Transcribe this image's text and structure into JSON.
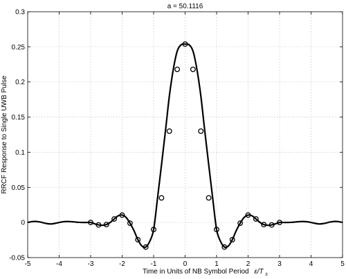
{
  "chart_data": {
    "type": "line",
    "title": "a = 50.1116",
    "xlabel": "Time in Units of NB Symbol Period",
    "xlabel_math": {
      "base": "ε/T",
      "sub": "s"
    },
    "ylabel": "RRCF Response to Single UWB Pulse",
    "xlim": [
      -5,
      5
    ],
    "ylim": [
      -0.05,
      0.3
    ],
    "xticks": [
      -5,
      -4,
      -3,
      -2,
      -1,
      0,
      1,
      2,
      3,
      4,
      5
    ],
    "yticks": [
      -0.05,
      0,
      0.05,
      0.1,
      0.15,
      0.2,
      0.25,
      0.3
    ],
    "xtick_labels": [
      "-5",
      "-4",
      "-3",
      "-2",
      "-1",
      "0",
      "1",
      "2",
      "3",
      "4",
      "5"
    ],
    "ytick_labels": [
      "-0.05",
      "0",
      "0.05",
      "0.1",
      "0.15",
      "0.2",
      "0.25",
      "0.3"
    ],
    "grid": true,
    "series": [
      {
        "style": "solid-curve",
        "x": [
          -5.0,
          -4.875,
          -4.75,
          -4.625,
          -4.5,
          -4.375,
          -4.25,
          -4.125,
          -4.0,
          -3.875,
          -3.75,
          -3.625,
          -3.5,
          -3.375,
          -3.25,
          -3.125,
          -3.0,
          -2.875,
          -2.75,
          -2.625,
          -2.5,
          -2.375,
          -2.25,
          -2.125,
          -2.0,
          -1.875,
          -1.75,
          -1.625,
          -1.5,
          -1.375,
          -1.25,
          -1.125,
          -1.0,
          -0.875,
          -0.75,
          -0.625,
          -0.5,
          -0.375,
          -0.25,
          -0.125,
          0.0,
          0.125,
          0.25,
          0.375,
          0.5,
          0.625,
          0.75,
          0.875,
          1.0,
          1.125,
          1.25,
          1.375,
          1.5,
          1.625,
          1.75,
          1.875,
          2.0,
          2.125,
          2.25,
          2.375,
          2.5,
          2.625,
          2.75,
          2.875,
          3.0,
          3.125,
          3.25,
          3.375,
          3.5,
          3.625,
          3.75,
          3.875,
          4.0,
          4.125,
          4.25,
          4.375,
          4.5,
          4.625,
          4.75,
          4.875,
          5.0
        ],
        "values": [
          0.0,
          0.0012,
          0.0015,
          0.0008,
          -0.0005,
          -0.0017,
          -0.0021,
          -0.0012,
          0.0,
          0.001,
          0.0014,
          0.0012,
          0.0007,
          0.0002,
          0.0,
          0.0,
          0.0,
          -0.0019,
          -0.0035,
          -0.004,
          -0.003,
          0.0002,
          0.005,
          0.0095,
          0.0105,
          0.0072,
          -0.001,
          -0.0115,
          -0.0245,
          -0.0335,
          -0.035,
          -0.027,
          -0.01,
          0.035,
          0.082,
          0.13,
          0.18,
          0.218,
          0.244,
          0.253,
          0.254,
          0.253,
          0.244,
          0.218,
          0.18,
          0.13,
          0.082,
          0.035,
          -0.01,
          -0.027,
          -0.035,
          -0.0335,
          -0.0245,
          -0.0115,
          -0.001,
          0.0072,
          0.0105,
          0.0095,
          0.005,
          0.0002,
          -0.003,
          -0.004,
          -0.0035,
          -0.0019,
          0.0,
          0.0,
          0.0,
          0.0002,
          0.0007,
          0.0012,
          0.0014,
          0.001,
          0.0,
          -0.0012,
          -0.0021,
          -0.0017,
          -0.0005,
          0.0008,
          0.0015,
          0.0012,
          0.0
        ]
      },
      {
        "style": "circle-markers",
        "x": [
          -3.0,
          -2.75,
          -2.5,
          -2.25,
          -2.0,
          -1.75,
          -1.5,
          -1.25,
          -1.0,
          -0.75,
          -0.5,
          -0.25,
          0.0,
          0.25,
          0.5,
          0.75,
          1.0,
          1.25,
          1.5,
          1.75,
          2.0,
          2.25,
          2.5,
          2.75,
          3.0
        ],
        "values": [
          0.0,
          -0.0035,
          -0.003,
          0.005,
          0.0105,
          -0.001,
          -0.0245,
          -0.035,
          -0.01,
          0.035,
          0.13,
          0.218,
          0.254,
          0.218,
          0.13,
          0.035,
          -0.01,
          -0.035,
          -0.0245,
          -0.001,
          0.0105,
          0.005,
          -0.003,
          -0.0035,
          0.0
        ]
      }
    ]
  }
}
